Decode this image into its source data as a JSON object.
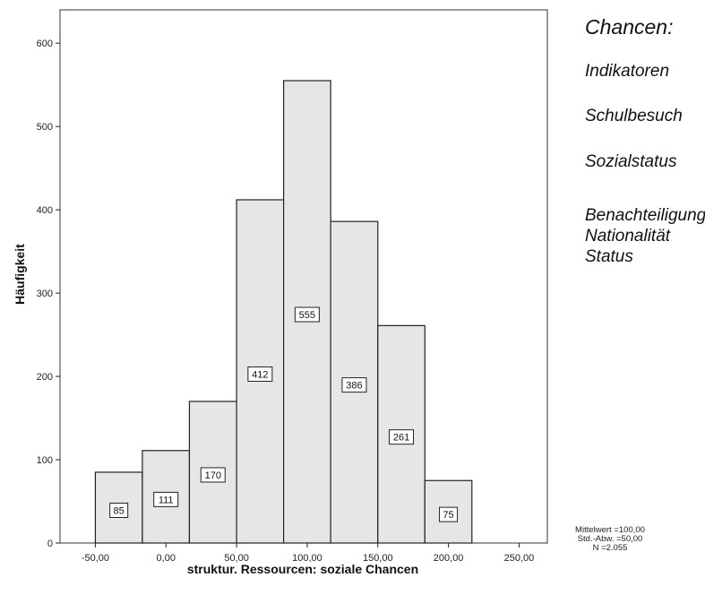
{
  "chart_data": {
    "type": "bar",
    "subtype": "histogram",
    "xlabel": "struktur. Ressourcen: soziale Chancen",
    "ylabel": "Häufigkeit",
    "x_ticks": [
      "-50,00",
      "0,00",
      "50,00",
      "100,00",
      "150,00",
      "200,00",
      "250,00"
    ],
    "y_ticks": [
      "0",
      "100",
      "200",
      "300",
      "400",
      "500",
      "600"
    ],
    "xlim": [
      -75,
      270
    ],
    "ylim": [
      0,
      640
    ],
    "bins": [
      {
        "start": -50,
        "end": -16.7,
        "value": 85,
        "label": "85"
      },
      {
        "start": -16.7,
        "end": 16.6,
        "value": 111,
        "label": "111"
      },
      {
        "start": 16.6,
        "end": 50,
        "value": 170,
        "label": "170"
      },
      {
        "start": 50,
        "end": 83.3,
        "value": 412,
        "label": "412"
      },
      {
        "start": 83.3,
        "end": 116.6,
        "value": 555,
        "label": "555"
      },
      {
        "start": 116.6,
        "end": 150,
        "value": 386,
        "label": "386"
      },
      {
        "start": 150,
        "end": 183.3,
        "value": 261,
        "label": "261"
      },
      {
        "start": 183.3,
        "end": 216.6,
        "value": 75,
        "label": "75"
      }
    ],
    "bar_color": "#e6e6e6",
    "stats": [
      "Mittelwert =100,00",
      "Std.-Abw. =50,00",
      "N =2.055"
    ],
    "grid": false
  },
  "side_text": {
    "title": "Chancen:",
    "line1": "Indikatoren",
    "line2": "Schulbesuch",
    "line3": "Sozialstatus",
    "line4a": "Benachteiligung",
    "line4b": "Nationalität",
    "line4c": "Status"
  }
}
